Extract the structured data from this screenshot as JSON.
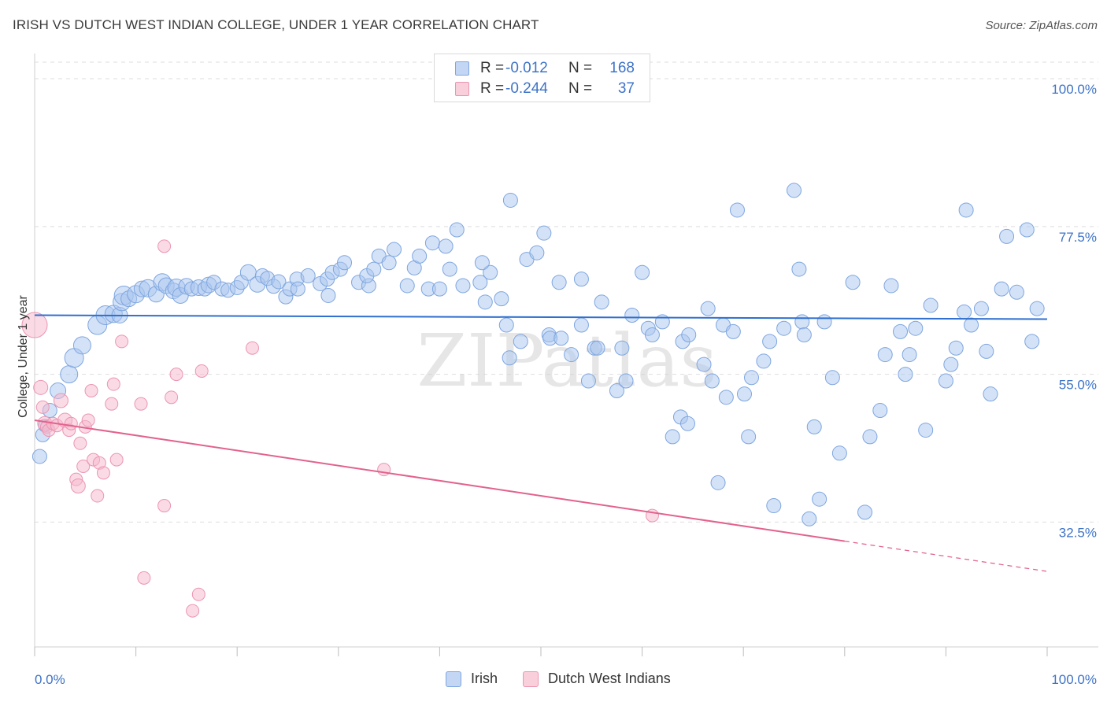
{
  "header": {
    "title": "IRISH VS DUTCH WEST INDIAN COLLEGE, UNDER 1 YEAR CORRELATION CHART",
    "source": "Source: ZipAtlas.com"
  },
  "watermark": "ZIPatlas",
  "legend_top": {
    "rows": [
      {
        "r_key": "R =",
        "r_value": "-0.012",
        "n_key": "N =",
        "n_value": "168"
      },
      {
        "r_key": "R =",
        "r_value": "-0.244",
        "n_key": "N =",
        "n_value": "37"
      }
    ]
  },
  "legend_bottom": {
    "items": [
      "Irish",
      "Dutch West Indians"
    ]
  },
  "colors": {
    "irish_fill": "#a9c6ef",
    "irish_stroke": "#7ea6df",
    "irish_line": "#2f6fcf",
    "dutch_fill": "#f6b8cb",
    "dutch_stroke": "#ec95b1",
    "dutch_line": "#e2628e",
    "tick_text": "#3d73c8",
    "grid": "#dedede"
  },
  "chart_data": {
    "type": "scatter",
    "title": "IRISH VS DUTCH WEST INDIAN COLLEGE, UNDER 1 YEAR CORRELATION CHART",
    "xlabel": "",
    "ylabel": "College, Under 1 year",
    "xlim": [
      0,
      100
    ],
    "ylim": [
      13.5,
      103
    ],
    "x_tick_labels": [
      "0.0%",
      "100.0%"
    ],
    "y_ticks": [
      32.5,
      55.0,
      77.5,
      100.0
    ],
    "y_tick_labels": [
      "32.5%",
      "55.0%",
      "77.5%",
      "100.0%"
    ],
    "grid": true,
    "legend_position": "top-center",
    "series": [
      {
        "name": "Irish",
        "r": -0.012,
        "n": 168,
        "trend": {
          "x": [
            0,
            100
          ],
          "y": [
            64.0,
            63.4
          ],
          "dashed_from": null
        },
        "points": [
          [
            0.5,
            42.5,
            9
          ],
          [
            0.8,
            45.8,
            9
          ],
          [
            1,
            47.2,
            8
          ],
          [
            1.5,
            49.5,
            9
          ],
          [
            2.3,
            52.5,
            10
          ],
          [
            3.4,
            55.0,
            11
          ],
          [
            3.9,
            57.5,
            12
          ],
          [
            4.7,
            59.4,
            11
          ],
          [
            6.2,
            62.5,
            12
          ],
          [
            7.0,
            64.0,
            12
          ],
          [
            7.8,
            64.2,
            11
          ],
          [
            8.4,
            64.0,
            10
          ],
          [
            8.6,
            66.0,
            11
          ],
          [
            8.8,
            67.0,
            12
          ],
          [
            9.3,
            66.5,
            10
          ],
          [
            10.0,
            67.2,
            11
          ],
          [
            10.6,
            68.0,
            10
          ],
          [
            11.2,
            68.1,
            11
          ],
          [
            12.0,
            67.2,
            10
          ],
          [
            12.6,
            69.0,
            11
          ],
          [
            13.0,
            68.5,
            10
          ],
          [
            13.7,
            67.7,
            10
          ],
          [
            14.0,
            68.2,
            11
          ],
          [
            14.4,
            67.0,
            10
          ],
          [
            15.0,
            68.4,
            10
          ],
          [
            15.5,
            68.0,
            9
          ],
          [
            16.2,
            68.2,
            10
          ],
          [
            16.8,
            68.0,
            9
          ],
          [
            17.2,
            68.6,
            10
          ],
          [
            17.7,
            69.0,
            9
          ],
          [
            18.5,
            68.0,
            9
          ],
          [
            19.1,
            67.8,
            9
          ],
          [
            20.0,
            68.2,
            9
          ],
          [
            20.4,
            69.0,
            9
          ],
          [
            21.1,
            70.5,
            10
          ],
          [
            22.0,
            68.7,
            10
          ],
          [
            22.5,
            70.0,
            9
          ],
          [
            23.0,
            69.6,
            9
          ],
          [
            23.6,
            68.4,
            9
          ],
          [
            24.1,
            69.1,
            9
          ],
          [
            24.8,
            66.8,
            9
          ],
          [
            25.2,
            68.0,
            9
          ],
          [
            25.9,
            69.5,
            9
          ],
          [
            26.0,
            68.0,
            9
          ],
          [
            27.0,
            70.0,
            9
          ],
          [
            28.2,
            68.8,
            9
          ],
          [
            29.0,
            67.0,
            9
          ],
          [
            28.9,
            69.5,
            9
          ],
          [
            29.4,
            70.5,
            9
          ],
          [
            30.2,
            71.0,
            9
          ],
          [
            30.6,
            72.0,
            9
          ],
          [
            32.0,
            69.0,
            9
          ],
          [
            33.0,
            68.5,
            9
          ],
          [
            32.8,
            70.0,
            9
          ],
          [
            33.5,
            71.0,
            9
          ],
          [
            34.0,
            73.0,
            9
          ],
          [
            35.0,
            72.0,
            9
          ],
          [
            35.5,
            74.0,
            9
          ],
          [
            36.8,
            68.5,
            9
          ],
          [
            37.5,
            71.2,
            9
          ],
          [
            38.0,
            73.0,
            9
          ],
          [
            38.9,
            68.0,
            9
          ],
          [
            40.0,
            68.0,
            9
          ],
          [
            39.3,
            75.0,
            9
          ],
          [
            40.6,
            74.5,
            9
          ],
          [
            41.0,
            71.0,
            9
          ],
          [
            41.7,
            77.0,
            9
          ],
          [
            42.3,
            68.5,
            9
          ],
          [
            44.0,
            69.0,
            9
          ],
          [
            44.5,
            66.0,
            9
          ],
          [
            45.0,
            70.5,
            9
          ],
          [
            44.2,
            72.0,
            9
          ],
          [
            46.1,
            66.5,
            9
          ],
          [
            46.6,
            62.5,
            9
          ],
          [
            47.0,
            81.5,
            9
          ],
          [
            46.9,
            57.5,
            9
          ],
          [
            48.0,
            60.0,
            9
          ],
          [
            48.6,
            72.5,
            9
          ],
          [
            49.6,
            73.5,
            9
          ],
          [
            50.3,
            76.5,
            9
          ],
          [
            50.8,
            61.0,
            9
          ],
          [
            50.9,
            60.5,
            9
          ],
          [
            51.8,
            69.0,
            9
          ],
          [
            52.0,
            60.5,
            9
          ],
          [
            53.0,
            58.0,
            9
          ],
          [
            54.0,
            69.5,
            9
          ],
          [
            54.0,
            62.5,
            9
          ],
          [
            54.7,
            54.0,
            9
          ],
          [
            55.3,
            59.0,
            9
          ],
          [
            55.6,
            59.0,
            9
          ],
          [
            56.0,
            66.0,
            9
          ],
          [
            57.5,
            52.5,
            9
          ],
          [
            58.0,
            59.0,
            9
          ],
          [
            58.4,
            54.0,
            9
          ],
          [
            59.0,
            64.0,
            9
          ],
          [
            60.0,
            70.5,
            9
          ],
          [
            60.6,
            62.0,
            9
          ],
          [
            61.0,
            61.0,
            9
          ],
          [
            62.0,
            63.0,
            9
          ],
          [
            63.0,
            45.5,
            9
          ],
          [
            63.8,
            48.5,
            9
          ],
          [
            64.0,
            60.0,
            9
          ],
          [
            64.5,
            47.5,
            9
          ],
          [
            64.6,
            61.0,
            9
          ],
          [
            66.1,
            56.5,
            9
          ],
          [
            66.5,
            65.0,
            9
          ],
          [
            66.9,
            54.0,
            9
          ],
          [
            67.5,
            38.5,
            9
          ],
          [
            68.0,
            62.5,
            9
          ],
          [
            68.3,
            51.5,
            9
          ],
          [
            69.0,
            61.5,
            9
          ],
          [
            69.4,
            80.0,
            9
          ],
          [
            70.1,
            52.0,
            9
          ],
          [
            70.5,
            45.5,
            9
          ],
          [
            70.8,
            54.5,
            9
          ],
          [
            72.0,
            57.0,
            9
          ],
          [
            72.6,
            60.0,
            9
          ],
          [
            73.0,
            35.0,
            9
          ],
          [
            74.0,
            62.0,
            9
          ],
          [
            75.0,
            83.0,
            9
          ],
          [
            75.5,
            71.0,
            9
          ],
          [
            75.8,
            63.0,
            9
          ],
          [
            76.0,
            61.0,
            9
          ],
          [
            76.5,
            33.0,
            9
          ],
          [
            77.0,
            47.0,
            9
          ],
          [
            77.5,
            36.0,
            9
          ],
          [
            78.0,
            63.0,
            9
          ],
          [
            78.8,
            54.5,
            9
          ],
          [
            79.5,
            43.0,
            9
          ],
          [
            80.8,
            69.0,
            9
          ],
          [
            82.0,
            34.0,
            9
          ],
          [
            82.5,
            45.5,
            9
          ],
          [
            83.5,
            49.5,
            9
          ],
          [
            84.0,
            58.0,
            9
          ],
          [
            84.6,
            68.5,
            9
          ],
          [
            85.5,
            61.5,
            9
          ],
          [
            86.0,
            55.0,
            9
          ],
          [
            86.4,
            58.0,
            9
          ],
          [
            87.0,
            62.0,
            9
          ],
          [
            88.0,
            46.5,
            9
          ],
          [
            88.5,
            65.5,
            9
          ],
          [
            90.0,
            54.0,
            9
          ],
          [
            90.5,
            56.5,
            9
          ],
          [
            91.0,
            59.0,
            9
          ],
          [
            91.8,
            64.5,
            9
          ],
          [
            92.0,
            80.0,
            9
          ],
          [
            92.5,
            62.5,
            9
          ],
          [
            93.5,
            65.0,
            9
          ],
          [
            94.0,
            58.5,
            9
          ],
          [
            94.4,
            52.0,
            9
          ],
          [
            95.5,
            68.0,
            9
          ],
          [
            96.0,
            76.0,
            9
          ],
          [
            97.0,
            67.5,
            9
          ],
          [
            98.0,
            77.0,
            9
          ],
          [
            98.5,
            60.0,
            9
          ],
          [
            99.0,
            65.0,
            9
          ]
        ]
      },
      {
        "name": "Dutch West Indians",
        "r": -0.244,
        "n": 37,
        "trend": {
          "x": [
            0,
            100
          ],
          "y": [
            48.0,
            25.0
          ],
          "dashed_from": 80
        },
        "points": [
          [
            0.0,
            62.5,
            16
          ],
          [
            0.6,
            53.0,
            9
          ],
          [
            0.8,
            50.0,
            8
          ],
          [
            1.0,
            47.5,
            9
          ],
          [
            1.2,
            47.0,
            8
          ],
          [
            1.4,
            46.5,
            8
          ],
          [
            1.8,
            47.5,
            8
          ],
          [
            2.2,
            47.2,
            8
          ],
          [
            2.6,
            51.0,
            9
          ],
          [
            3.0,
            48.0,
            9
          ],
          [
            3.4,
            46.5,
            8
          ],
          [
            3.6,
            47.5,
            8
          ],
          [
            4.1,
            39.0,
            8
          ],
          [
            4.3,
            38.0,
            9
          ],
          [
            4.5,
            44.5,
            8
          ],
          [
            4.8,
            41.0,
            8
          ],
          [
            5.0,
            47.0,
            8
          ],
          [
            5.3,
            48.0,
            8
          ],
          [
            5.6,
            52.5,
            8
          ],
          [
            5.8,
            42.0,
            8
          ],
          [
            6.2,
            36.5,
            8
          ],
          [
            6.4,
            41.5,
            8
          ],
          [
            6.8,
            40.0,
            8
          ],
          [
            7.6,
            50.5,
            8
          ],
          [
            7.8,
            53.5,
            8
          ],
          [
            8.1,
            42.0,
            8
          ],
          [
            8.6,
            60.0,
            8
          ],
          [
            10.5,
            50.5,
            8
          ],
          [
            10.8,
            24.0,
            8
          ],
          [
            12.8,
            35.0,
            8
          ],
          [
            12.8,
            74.5,
            8
          ],
          [
            13.5,
            51.5,
            8
          ],
          [
            14.0,
            55.0,
            8
          ],
          [
            15.6,
            19.0,
            8
          ],
          [
            16.2,
            21.5,
            8
          ],
          [
            16.5,
            55.5,
            8
          ],
          [
            21.5,
            59.0,
            8
          ],
          [
            34.5,
            40.5,
            8
          ],
          [
            61.0,
            33.5,
            8
          ]
        ]
      }
    ]
  }
}
